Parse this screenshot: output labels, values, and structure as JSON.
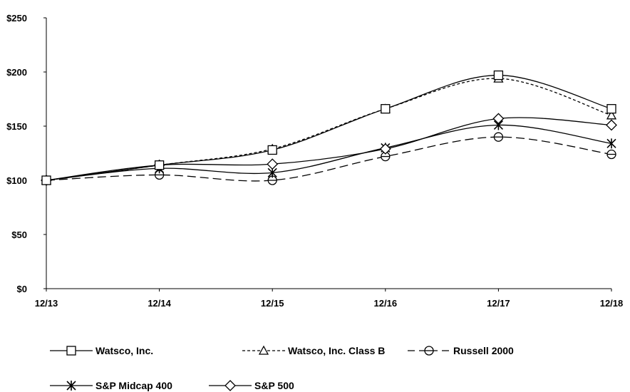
{
  "chart_data": {
    "type": "line",
    "categories": [
      "12/13",
      "12/14",
      "12/15",
      "12/16",
      "12/17",
      "12/18"
    ],
    "ylim": [
      0,
      250
    ],
    "yticks": [
      0,
      50,
      100,
      150,
      200,
      250
    ],
    "ytick_labels": [
      "$0",
      "$50",
      "$100",
      "$150",
      "$200",
      "$250"
    ],
    "grid": false,
    "legend_position": "bottom",
    "series": [
      {
        "name": "Watsco, Inc.",
        "values": [
          100,
          114,
          128,
          166,
          197,
          166
        ],
        "marker": "square",
        "dash": "solid",
        "smooth": true
      },
      {
        "name": "Watsco, Inc. Class B",
        "values": [
          100,
          114,
          129,
          166,
          194,
          160
        ],
        "marker": "triangle",
        "dash": "dashed-fine",
        "smooth": true
      },
      {
        "name": "Russell 2000",
        "values": [
          100,
          105,
          100,
          122,
          140,
          124
        ],
        "marker": "circle",
        "dash": "dashed-long",
        "smooth": true
      },
      {
        "name": "S&P Midcap 400",
        "values": [
          100,
          111,
          107,
          130,
          151,
          134
        ],
        "marker": "asterisk",
        "dash": "solid",
        "smooth": true
      },
      {
        "name": "S&P 500",
        "values": [
          100,
          114,
          115,
          129,
          157,
          151
        ],
        "marker": "diamond",
        "dash": "solid",
        "smooth": true
      }
    ]
  }
}
